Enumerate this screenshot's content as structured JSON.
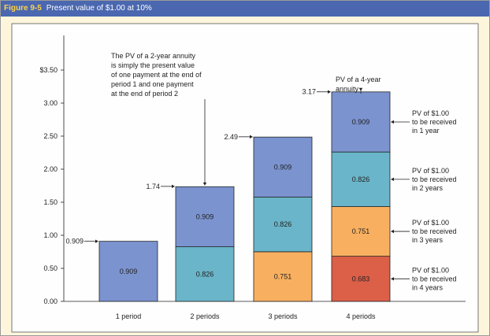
{
  "figure": {
    "number": "Figure 9-5",
    "title": "Present value of $1.00 at 10%"
  },
  "colors": {
    "header_bg": "#4a67b0",
    "header_number": "#ffd24a",
    "background": "#fdf6dc",
    "year1": "#7b93cf",
    "year2": "#6ab5c9",
    "year3": "#f8b060",
    "year4": "#dc5f48"
  },
  "chart_data": {
    "type": "bar",
    "stacked": true,
    "categories": [
      "1 period",
      "2 periods",
      "3 periods",
      "4 periods"
    ],
    "ylim": [
      0,
      3.5
    ],
    "y_ticks": [
      "0.00",
      "0.50",
      "1.00",
      "1.50",
      "2.00",
      "2.50",
      "3.00",
      "$3.50"
    ],
    "y_tick_values": [
      0,
      0.5,
      1.0,
      1.5,
      2.0,
      2.5,
      3.0,
      3.5
    ],
    "stacks": [
      [
        {
          "value": 0.909,
          "label": "0.909",
          "color_key": "year1"
        }
      ],
      [
        {
          "value": 0.826,
          "label": "0.826",
          "color_key": "year2"
        },
        {
          "value": 0.909,
          "label": "0.909",
          "color_key": "year1"
        }
      ],
      [
        {
          "value": 0.751,
          "label": "0.751",
          "color_key": "year3"
        },
        {
          "value": 0.826,
          "label": "0.826",
          "color_key": "year2"
        },
        {
          "value": 0.909,
          "label": "0.909",
          "color_key": "year1"
        }
      ],
      [
        {
          "value": 0.683,
          "label": "0.683",
          "color_key": "year4"
        },
        {
          "value": 0.751,
          "label": "0.751",
          "color_key": "year3"
        },
        {
          "value": 0.826,
          "label": "0.826",
          "color_key": "year2"
        },
        {
          "value": 0.909,
          "label": "0.909",
          "color_key": "year1"
        }
      ]
    ],
    "totals": [
      {
        "value": 0.909,
        "label": "0.909"
      },
      {
        "value": 1.74,
        "label": "1.74"
      },
      {
        "value": 2.49,
        "label": "2.49"
      },
      {
        "value": 3.17,
        "label": "3.17"
      }
    ],
    "annotations": {
      "two_year": [
        "The PV of a 2-year annuity",
        "is simply the present value",
        "of one payment at the end of",
        "period 1 and one payment",
        "at the end of period 2"
      ],
      "four_year": [
        "PV of a 4-year",
        "annuity"
      ]
    },
    "side_labels": [
      {
        "lines": [
          "PV of $1.00",
          "to be received",
          "in 1 year"
        ]
      },
      {
        "lines": [
          "PV of $1.00",
          "to be received",
          "in 2 years"
        ]
      },
      {
        "lines": [
          "PV of $1.00",
          "to be received",
          "in 3 years"
        ]
      },
      {
        "lines": [
          "PV of $1.00",
          "to be received",
          "in 4 years"
        ]
      }
    ]
  }
}
